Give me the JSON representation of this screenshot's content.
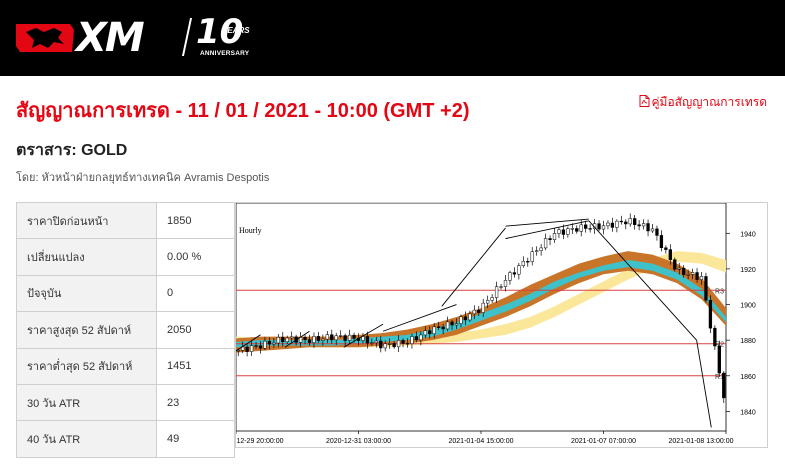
{
  "brand": {
    "logo_text": "XM",
    "anniversary_number": "10",
    "anniversary_years": "YEARS",
    "anniversary_label": "ANNIVERSARY"
  },
  "page": {
    "title": "สัญญาณการเทรด - 11 / 01 / 2021 - 10:00 (GMT +2)",
    "guide_link": "คู่มือสัญญาณการเทรด",
    "instrument": "ตราสาร: GOLD",
    "author": "โดย: หัวหน้าฝ่ายกลยุทธ์ทางเทคนิค Avramis Despotis"
  },
  "stats": [
    {
      "label": "ราคาปิดก่อนหน้า",
      "value": "1850"
    },
    {
      "label": "เปลี่ยนแปลง",
      "value": "0.00 %"
    },
    {
      "label": "ปัจจุบัน",
      "value": "0"
    },
    {
      "label": "ราคาสูงสุด 52 สัปดาห์",
      "value": "2050"
    },
    {
      "label": "ราคาต่ำสุด 52 สัปดาห์",
      "value": "1451"
    },
    {
      "label": "30 วัน ATR",
      "value": "23"
    },
    {
      "label": "40 วัน ATR",
      "value": "49"
    }
  ],
  "chart_data": {
    "type": "line",
    "title": "Hourly",
    "x_ticks": [
      "12-29 20:00:00",
      "2020-12-31 03:00:00",
      "2021-01-04 15:00:00",
      "2021-01-07 07:00:00",
      "2021-01-08 13:00:00"
    ],
    "y_ticks": [
      1840,
      1860,
      1880,
      1900,
      1920,
      1940
    ],
    "ylim": [
      1829,
      1957
    ],
    "xlim": [
      0,
      100
    ],
    "levels": [
      {
        "label": "R3",
        "value": 1908
      },
      {
        "label": "R2",
        "value": 1878
      },
      {
        "label": "R1",
        "value": 1860
      }
    ],
    "x": [
      0,
      5,
      10,
      15,
      20,
      25,
      30,
      35,
      40,
      45,
      50,
      55,
      60,
      65,
      70,
      75,
      80,
      85,
      90,
      95,
      100
    ],
    "price": [
      1874,
      1877,
      1881,
      1880,
      1882,
      1881,
      1877,
      1879,
      1886,
      1890,
      1898,
      1914,
      1927,
      1940,
      1943,
      1944,
      1947,
      1942,
      1919,
      1915,
      1842
    ],
    "bands": {
      "outer_upper": [
        1881,
        1882,
        1882,
        1882,
        1882,
        1883,
        1884,
        1886,
        1889,
        1893,
        1898,
        1904,
        1911,
        1917,
        1923,
        1927,
        1930,
        1928,
        1923,
        1915,
        1898
      ],
      "outer_lower": [
        1873,
        1874,
        1875,
        1876,
        1876,
        1876,
        1877,
        1878,
        1880,
        1883,
        1888,
        1893,
        1899,
        1906,
        1912,
        1917,
        1919,
        1917,
        1912,
        1903,
        1888
      ],
      "inner_upper": [
        1879,
        1880,
        1880,
        1880,
        1880,
        1881,
        1882,
        1883,
        1886,
        1890,
        1895,
        1900,
        1906,
        1913,
        1918,
        1922,
        1925,
        1923,
        1918,
        1909,
        1893
      ],
      "inner_lower": [
        1876,
        1877,
        1877,
        1877,
        1877,
        1878,
        1879,
        1880,
        1882,
        1886,
        1891,
        1896,
        1902,
        1909,
        1915,
        1919,
        1921,
        1919,
        1914,
        1905,
        1890
      ],
      "slow_upper": [
        1882,
        1881,
        1880,
        1880,
        1880,
        1880,
        1881,
        1882,
        1883,
        1884,
        1886,
        1889,
        1893,
        1899,
        1906,
        1913,
        1920,
        1926,
        1930,
        1929,
        1925
      ],
      "slow_lower": [
        1877,
        1877,
        1877,
        1876,
        1876,
        1876,
        1876,
        1877,
        1878,
        1879,
        1881,
        1883,
        1887,
        1893,
        1900,
        1907,
        1914,
        1920,
        1924,
        1923,
        1918
      ]
    },
    "pattern_lines": [
      {
        "x": [
          0,
          5
        ],
        "y": [
          1874,
          1883
        ]
      },
      {
        "x": [
          10,
          15
        ],
        "y": [
          1876,
          1885
        ]
      },
      {
        "x": [
          22,
          30
        ],
        "y": [
          1876,
          1889
        ]
      },
      {
        "x": [
          30,
          45
        ],
        "y": [
          1885,
          1900
        ]
      },
      {
        "x": [
          42,
          55
        ],
        "y": [
          1899,
          1943
        ]
      },
      {
        "x": [
          55,
          72
        ],
        "y": [
          1944,
          1948
        ]
      },
      {
        "x": [
          55,
          72
        ],
        "y": [
          1937,
          1947
        ]
      },
      {
        "x": [
          72,
          94
        ],
        "y": [
          1947,
          1880
        ]
      },
      {
        "x": [
          94,
          97
        ],
        "y": [
          1880,
          1831
        ]
      }
    ],
    "colors": {
      "outer_band": "#c8752a",
      "inner_band": "#3ec1c9",
      "slow_band": "#fbe79a",
      "level_line": "#d94040",
      "candle": "#000000"
    }
  }
}
